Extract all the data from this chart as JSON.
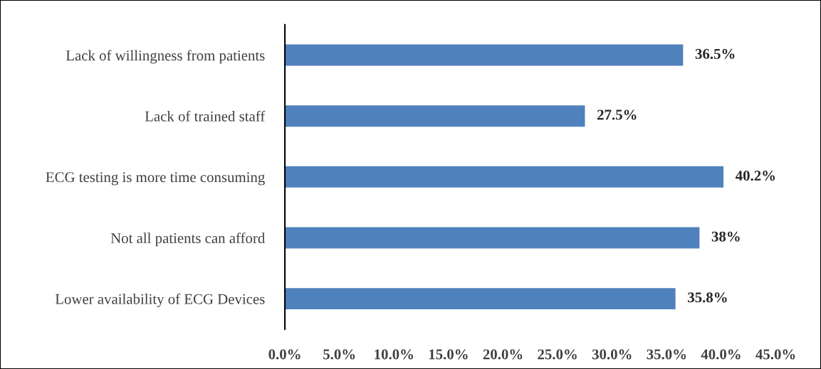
{
  "chart_data": {
    "type": "bar",
    "orientation": "horizontal",
    "categories": [
      "Lack of willingness from patients",
      "Lack of trained staff",
      "ECG testing is more time consuming",
      "Not all patients can afford",
      "Lower availability of ECG Devices"
    ],
    "values": [
      36.5,
      27.5,
      40.2,
      38,
      35.8
    ],
    "value_labels": [
      "36.5%",
      "27.5%",
      "40.2%",
      "38%",
      "35.8%"
    ],
    "color": "#4f81bd",
    "xlim": [
      0,
      45
    ],
    "xticks": [
      {
        "value": 0,
        "label": "0.0%"
      },
      {
        "value": 5,
        "label": "5.0%"
      },
      {
        "value": 10,
        "label": "10.0%"
      },
      {
        "value": 15,
        "label": "15.0%"
      },
      {
        "value": 20,
        "label": "20.0%"
      },
      {
        "value": 25,
        "label": "25.0%"
      },
      {
        "value": 30,
        "label": "30.0%"
      },
      {
        "value": 35,
        "label": "35.0%"
      },
      {
        "value": 40,
        "label": "40.0%"
      },
      {
        "value": 45,
        "label": "45.0%"
      }
    ],
    "grid": false,
    "legend": false
  }
}
